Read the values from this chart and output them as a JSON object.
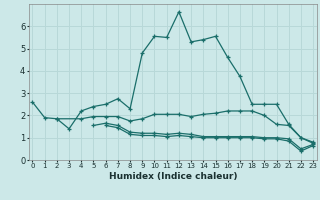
{
  "xlabel": "Humidex (Indice chaleur)",
  "background_color": "#cce8e8",
  "grid_color": "#b8d8d8",
  "line_color": "#1a6e6a",
  "x_values": [
    0,
    1,
    2,
    3,
    4,
    5,
    6,
    7,
    8,
    9,
    10,
    11,
    12,
    13,
    14,
    15,
    16,
    17,
    18,
    19,
    20,
    21,
    22,
    23
  ],
  "series": [
    [
      2.6,
      1.9,
      1.85,
      1.4,
      2.2,
      2.4,
      2.5,
      2.75,
      2.3,
      4.8,
      5.55,
      5.5,
      6.65,
      5.3,
      5.4,
      5.55,
      4.6,
      3.75,
      2.5,
      2.5,
      2.5,
      1.6,
      1.0,
      0.8
    ],
    [
      null,
      null,
      1.85,
      null,
      1.85,
      1.95,
      1.95,
      1.95,
      1.75,
      1.85,
      2.05,
      2.05,
      2.05,
      1.95,
      2.05,
      2.1,
      2.2,
      2.2,
      2.2,
      2.0,
      1.6,
      1.55,
      1.0,
      0.75
    ],
    [
      null,
      null,
      null,
      null,
      null,
      1.55,
      1.65,
      1.55,
      1.25,
      1.2,
      1.2,
      1.15,
      1.2,
      1.15,
      1.05,
      1.05,
      1.05,
      1.05,
      1.05,
      1.0,
      1.0,
      0.95,
      0.5,
      0.7
    ],
    [
      null,
      null,
      null,
      null,
      null,
      null,
      1.55,
      1.45,
      1.15,
      1.1,
      1.1,
      1.05,
      1.1,
      1.05,
      1.0,
      1.0,
      1.0,
      1.0,
      1.0,
      0.95,
      0.95,
      0.85,
      0.4,
      0.65
    ]
  ],
  "ylim": [
    0,
    7
  ],
  "xlim": [
    -0.3,
    23.3
  ],
  "yticks": [
    0,
    1,
    2,
    3,
    4,
    5,
    6
  ],
  "xticks": [
    0,
    1,
    2,
    3,
    4,
    5,
    6,
    7,
    8,
    9,
    10,
    11,
    12,
    13,
    14,
    15,
    16,
    17,
    18,
    19,
    20,
    21,
    22,
    23
  ]
}
